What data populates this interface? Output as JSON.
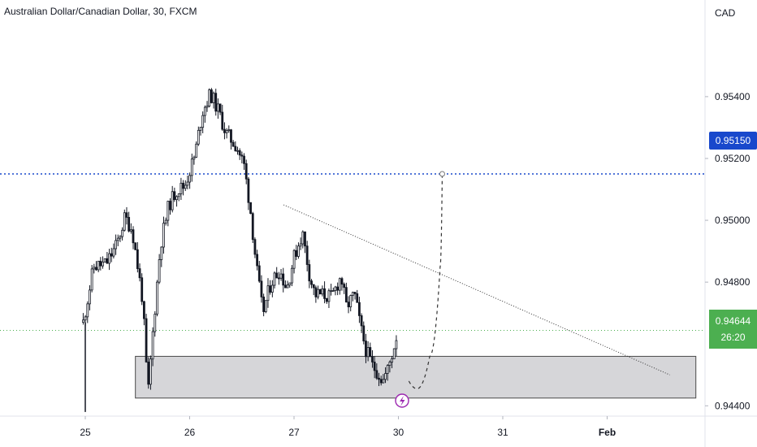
{
  "header": {
    "title": "Australian Dollar/Canadian Dollar, 30, FXCM",
    "currency": "CAD"
  },
  "target_label": "0.95150",
  "last_price": {
    "value": "0.94644",
    "countdown": "26:20"
  },
  "colors": {
    "target_line": "#1848cc",
    "last_price": "#4caf50",
    "candle": "#131722",
    "zone": "#d6d6d9"
  },
  "chart_data": {
    "type": "candlestick",
    "y_ticks": [
      "0.95400",
      "0.95200",
      "0.95000",
      "0.94800",
      "0.94400"
    ],
    "x_ticks": [
      "25",
      "26",
      "27",
      "30",
      "31",
      "Feb"
    ],
    "ylim": [
      0.94385,
      0.9566
    ],
    "horizontal_lines": [
      {
        "price": 0.9515,
        "style": "dotted",
        "label": "0.95150"
      },
      {
        "price": 0.94644,
        "style": "dotted",
        "label": "0.94644"
      }
    ],
    "zone": {
      "from_day": 25.48,
      "to_day": 30.85,
      "top": 0.9456,
      "bottom": 0.94425
    },
    "trendline": {
      "from": [
        26.9,
        0.9505
      ],
      "to": [
        30.6,
        0.945
      ]
    },
    "projection": [
      [
        30.1,
        0.9448
      ],
      [
        30.18,
        0.94455
      ],
      [
        30.3,
        0.9456
      ],
      [
        30.4,
        0.9485
      ],
      [
        30.42,
        0.9515
      ]
    ],
    "price_path": [
      [
        24.98,
        0.9467
      ],
      [
        25.08,
        0.9485
      ],
      [
        25.2,
        0.9486
      ],
      [
        25.3,
        0.9492
      ],
      [
        25.38,
        0.9501
      ],
      [
        25.45,
        0.9497
      ],
      [
        25.55,
        0.9474
      ],
      [
        25.6,
        0.9443
      ],
      [
        25.65,
        0.9465
      ],
      [
        25.72,
        0.9492
      ],
      [
        25.8,
        0.9505
      ],
      [
        25.88,
        0.951
      ],
      [
        25.95,
        0.9511
      ],
      [
        26.05,
        0.9521
      ],
      [
        26.12,
        0.9535
      ],
      [
        26.2,
        0.9541
      ],
      [
        26.28,
        0.9535
      ],
      [
        26.35,
        0.9528
      ],
      [
        26.45,
        0.9524
      ],
      [
        26.52,
        0.9518
      ],
      [
        26.58,
        0.9504
      ],
      [
        26.64,
        0.9485
      ],
      [
        26.7,
        0.947
      ],
      [
        26.78,
        0.948
      ],
      [
        26.86,
        0.9484
      ],
      [
        26.93,
        0.9478
      ],
      [
        27.0,
        0.9488
      ],
      [
        27.08,
        0.9496
      ],
      [
        27.15,
        0.9482
      ],
      [
        27.2,
        0.9476
      ],
      [
        27.28,
        0.9476
      ],
      [
        27.36,
        0.9475
      ],
      [
        27.45,
        0.9482
      ],
      [
        27.5,
        0.9472
      ],
      [
        27.58,
        0.9476
      ],
      [
        27.64,
        0.9465
      ],
      [
        27.69,
        0.9458
      ],
      [
        27.75,
        0.9453
      ],
      [
        27.8,
        0.9451
      ],
      [
        27.85,
        0.9448
      ],
      [
        27.9,
        0.9452
      ],
      [
        27.95,
        0.9458
      ],
      [
        27.99,
        0.9464
      ]
    ]
  }
}
